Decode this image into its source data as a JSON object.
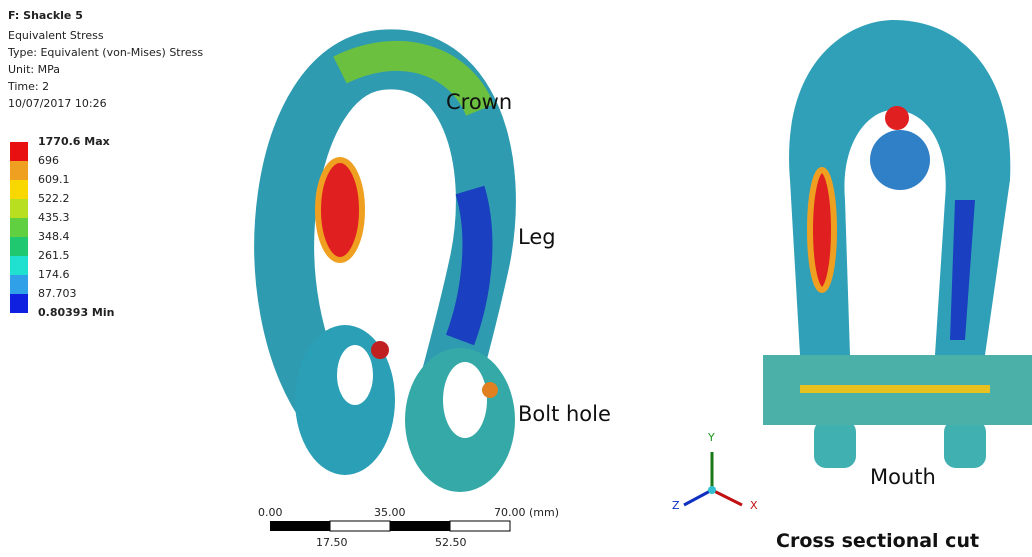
{
  "header": {
    "title": "F: Shackle 5",
    "lines": [
      "Equivalent Stress",
      "Type: Equivalent (von-Mises) Stress",
      "Unit: MPa",
      "Time: 2",
      "10/07/2017 10:26"
    ]
  },
  "legend": {
    "labels": [
      "1770.6 Max",
      "696",
      "609.1",
      "522.2",
      "435.3",
      "348.4",
      "261.5",
      "174.6",
      "87.703",
      "0.80393 Min"
    ]
  },
  "annotations": {
    "crown": "Crown",
    "leg": "Leg",
    "bolt_hole": "Bolt hole",
    "mouth": "Mouth"
  },
  "scale_bar": {
    "top_labels": [
      "0.00",
      "35.00",
      "70.00 (mm)"
    ],
    "bottom_labels": [
      "17.50",
      "52.50"
    ]
  },
  "triad": {
    "y": "Y",
    "z": "Z",
    "x": "X"
  },
  "caption": "Cross sectional cut"
}
